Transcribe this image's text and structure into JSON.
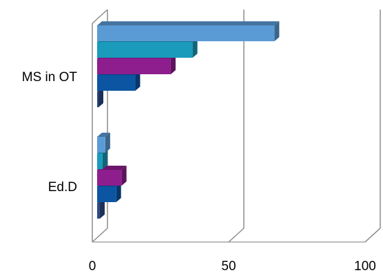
{
  "chart_data": {
    "type": "bar",
    "orientation": "horizontal",
    "style": "3d",
    "categories": [
      "MS in OT",
      "Ed.D"
    ],
    "series": [
      {
        "values": [
          65,
          3
        ],
        "color": "#5b9bd5"
      },
      {
        "values": [
          35,
          2
        ],
        "color": "#1a9bbc"
      },
      {
        "values": [
          27,
          9
        ],
        "color": "#8e1e8e"
      },
      {
        "values": [
          14,
          7
        ],
        "color": "#0b55a3"
      },
      {
        "values": [
          0,
          1
        ],
        "color": "#2c4a86"
      }
    ],
    "xlim": [
      0,
      100
    ],
    "xticks": [
      0,
      50,
      100
    ],
    "grid": true,
    "legend": "none"
  }
}
